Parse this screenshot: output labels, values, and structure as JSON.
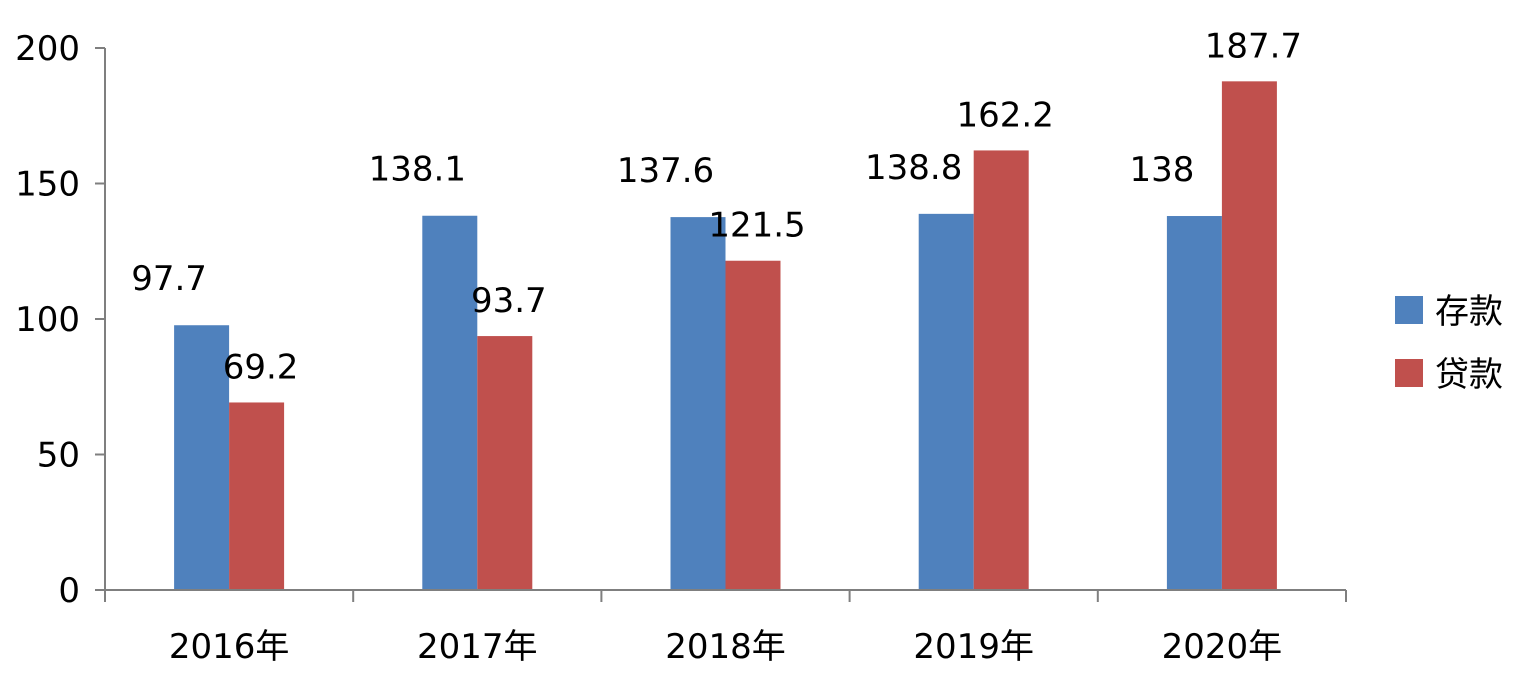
{
  "chart_data": {
    "type": "bar",
    "categories": [
      "2016年",
      "2017年",
      "2018年",
      "2019年",
      "2020年"
    ],
    "series": [
      {
        "name": "存款",
        "values": [
          97.7,
          138.1,
          137.6,
          138.8,
          138
        ],
        "labels": [
          "97.7",
          "138.1",
          "137.6",
          "138.8",
          "138"
        ],
        "color": "#4F81BD"
      },
      {
        "name": "贷款",
        "values": [
          69.2,
          93.7,
          121.5,
          162.2,
          187.7
        ],
        "labels": [
          "69.2",
          "93.7",
          "121.5",
          "162.2",
          "187.7"
        ],
        "color": "#C0504D"
      }
    ],
    "y_ticks": [
      "0",
      "50",
      "100",
      "150",
      "200"
    ],
    "ylim": [
      0,
      200
    ],
    "grid": false,
    "legend_position": "right"
  }
}
